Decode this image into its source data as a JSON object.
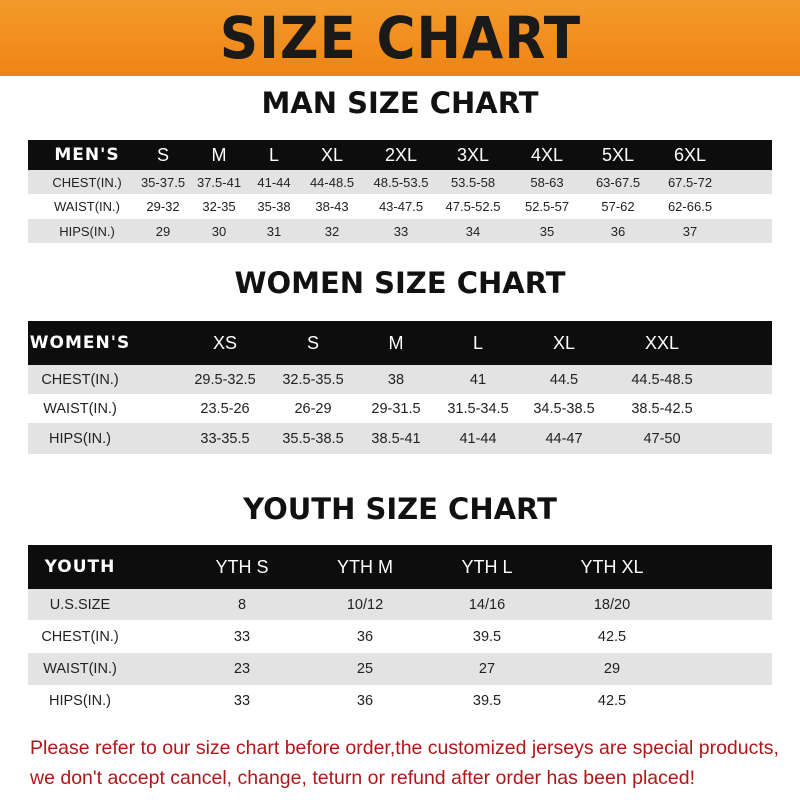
{
  "banner_title": "SIZE CHART",
  "men": {
    "title": "MAN SIZE CHART",
    "header": [
      "MEN'S",
      "S",
      "M",
      "L",
      "XL",
      "2XL",
      "3XL",
      "4XL",
      "5XL",
      "6XL"
    ],
    "rows": [
      [
        "CHEST(IN.)",
        "35-37.5",
        "37.5-41",
        "41-44",
        "44-48.5",
        "48.5-53.5",
        "53.5-58",
        "58-63",
        "63-67.5",
        "67.5-72"
      ],
      [
        "WAIST(IN.)",
        "29-32",
        "32-35",
        "35-38",
        "38-43",
        "43-47.5",
        "47.5-52.5",
        "52.5-57",
        "57-62",
        "62-66.5"
      ],
      [
        "HIPS(IN.)",
        "29",
        "30",
        "31",
        "32",
        "33",
        "34",
        "35",
        "36",
        "37"
      ]
    ]
  },
  "women": {
    "title": "WOMEN SIZE CHART",
    "header": [
      "WOMEN'S",
      "XS",
      "S",
      "M",
      "L",
      "XL",
      "XXL"
    ],
    "rows": [
      [
        "CHEST(IN.)",
        "29.5-32.5",
        "32.5-35.5",
        "38",
        "41",
        "44.5",
        "44.5-48.5"
      ],
      [
        "WAIST(IN.)",
        "23.5-26",
        "26-29",
        "29-31.5",
        "31.5-34.5",
        "34.5-38.5",
        "38.5-42.5"
      ],
      [
        "HIPS(IN.)",
        "33-35.5",
        "35.5-38.5",
        "38.5-41",
        "41-44",
        "44-47",
        "47-50"
      ]
    ]
  },
  "youth": {
    "title": "YOUTH SIZE CHART",
    "header": [
      "YOUTH",
      "YTH S",
      "YTH M",
      "YTH L",
      "YTH XL"
    ],
    "rows": [
      [
        "U.S.SIZE",
        "8",
        "10/12",
        "14/16",
        "18/20"
      ],
      [
        "CHEST(IN.)",
        "33",
        "36",
        "39.5",
        "42.5"
      ],
      [
        "WAIST(IN.)",
        "23",
        "25",
        "27",
        "29"
      ],
      [
        "HIPS(IN.)",
        "33",
        "36",
        "39.5",
        "42.5"
      ]
    ]
  },
  "notice": {
    "line1": "Please refer to our size chart before order,the customized jerseys are special products,",
    "line2": "we don't accept cancel, change, teturn or refund after order has been placed!"
  },
  "colors": {
    "banner": "#ef8414",
    "header_row": "#0d0d0d",
    "stripe": "#e3e3e3",
    "notice": "#b0171a"
  }
}
